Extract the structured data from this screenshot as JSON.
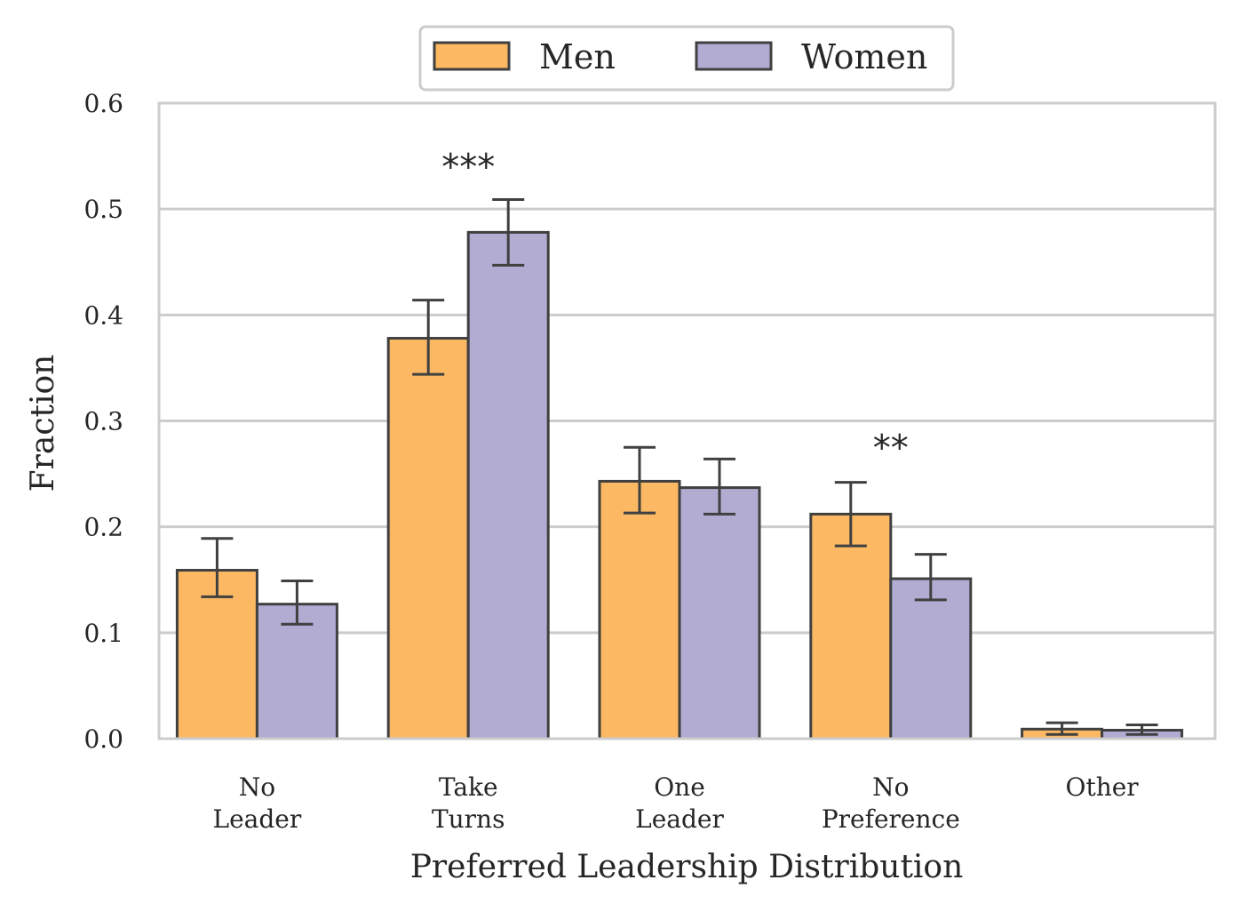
{
  "chart_data": {
    "type": "bar",
    "categories": [
      [
        "No",
        "Leader"
      ],
      [
        "Take",
        "Turns"
      ],
      [
        "One",
        "Leader"
      ],
      [
        "No",
        "Preference"
      ],
      [
        "Other"
      ]
    ],
    "series": [
      {
        "name": "Men",
        "color": "#fdb863",
        "values": [
          0.159,
          0.378,
          0.243,
          0.212,
          0.009
        ],
        "err_low": [
          0.134,
          0.344,
          0.213,
          0.182,
          0.004
        ],
        "err_high": [
          0.189,
          0.414,
          0.275,
          0.242,
          0.015
        ]
      },
      {
        "name": "Women",
        "color": "#b2abd2",
        "values": [
          0.127,
          0.478,
          0.237,
          0.151,
          0.008
        ],
        "err_low": [
          0.108,
          0.447,
          0.212,
          0.131,
          0.004
        ],
        "err_high": [
          0.149,
          0.509,
          0.264,
          0.174,
          0.013
        ]
      }
    ],
    "significance": [
      {
        "category_index": 1,
        "label": "***",
        "y": 0.54
      },
      {
        "category_index": 3,
        "label": "**",
        "y": 0.275
      }
    ],
    "xlabel": "Preferred Leadership Distribution",
    "ylabel": "Fraction",
    "ylim": [
      0.0,
      0.6
    ],
    "yticks": [
      "0.0",
      "0.1",
      "0.2",
      "0.3",
      "0.4",
      "0.5",
      "0.6"
    ],
    "grid": "horizontal",
    "legend": {
      "placement": "top-center, outside",
      "columns": 2
    }
  }
}
